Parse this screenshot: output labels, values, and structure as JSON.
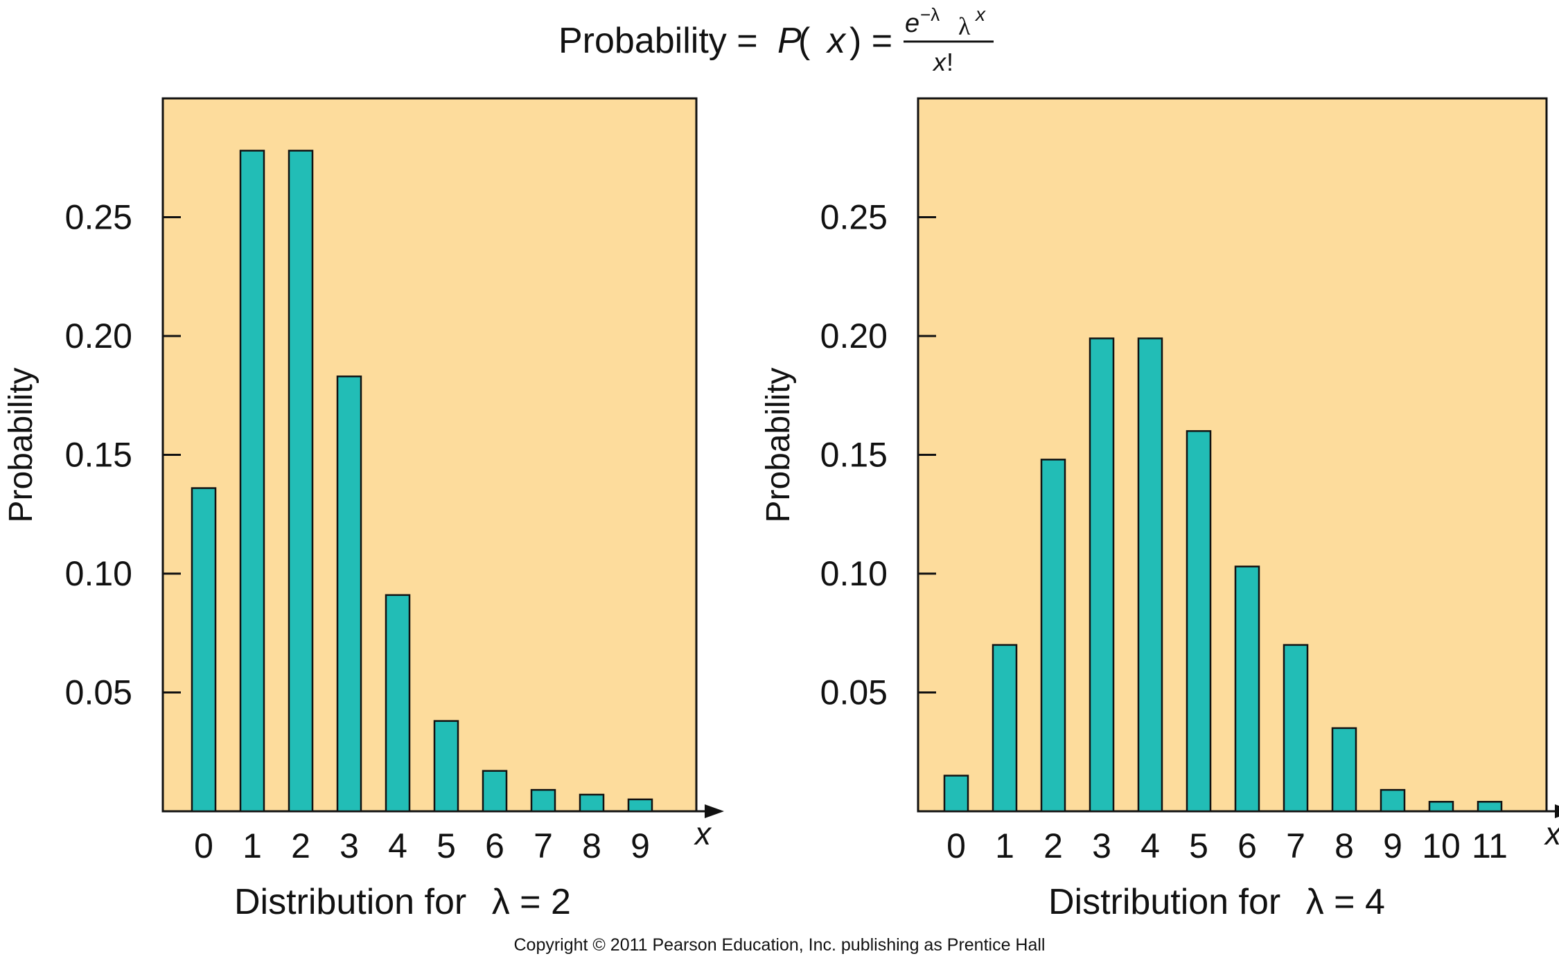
{
  "formula": {
    "prefix": "Probability = ",
    "p": "P",
    "open": " (",
    "x": "x",
    "close": ") =",
    "num_e": "e",
    "num_exp": "−λ",
    "num_lambda": "λ",
    "num_x": "x",
    "den_x": "x",
    "den_bang": " !"
  },
  "copyright": "Copyright © 2011 Pearson Education, Inc. publishing as Prentice Hall",
  "colors": {
    "plot_bg": "#FDDC9C",
    "bar": "#22BDB6",
    "bar_stroke": "#111111",
    "axis": "#111111"
  },
  "chart_data": [
    {
      "type": "bar",
      "xlabel": "x",
      "ylabel": "Probability",
      "caption_prefix": "Distribution for ",
      "caption_lambda": "λ = 2",
      "ylim": [
        0,
        0.3
      ],
      "yticks": [
        "0.05",
        "0.10",
        "0.15",
        "0.20",
        "0.25"
      ],
      "categories": [
        "0",
        "1",
        "2",
        "3",
        "4",
        "5",
        "6",
        "7",
        "8",
        "9"
      ],
      "values": [
        0.136,
        0.278,
        0.278,
        0.183,
        0.091,
        0.038,
        0.017,
        0.009,
        0.007,
        0.005
      ],
      "grid": false
    },
    {
      "type": "bar",
      "xlabel": "x",
      "ylabel": "Probability",
      "caption_prefix": "Distribution for ",
      "caption_lambda": "λ = 4",
      "ylim": [
        0,
        0.3
      ],
      "yticks": [
        "0.05",
        "0.10",
        "0.15",
        "0.20",
        "0.25"
      ],
      "categories": [
        "0",
        "1",
        "2",
        "3",
        "4",
        "5",
        "6",
        "7",
        "8",
        "9",
        "10",
        "11"
      ],
      "values": [
        0.015,
        0.07,
        0.148,
        0.199,
        0.199,
        0.16,
        0.103,
        0.07,
        0.035,
        0.009,
        0.004,
        0.004
      ],
      "grid": false
    }
  ]
}
